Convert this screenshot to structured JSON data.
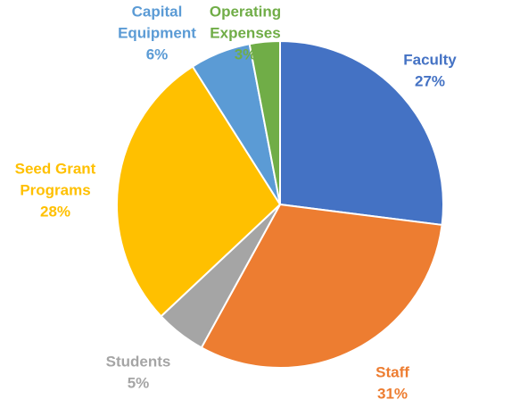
{
  "chart_data": {
    "type": "pie",
    "slices": [
      {
        "name": "Faculty",
        "value": 27,
        "value_label": "27%",
        "color": "#4472C4",
        "label_lines": [
          "Faculty"
        ]
      },
      {
        "name": "Staff",
        "value": 31,
        "value_label": "31%",
        "color": "#ED7D31",
        "label_lines": [
          "Staff"
        ]
      },
      {
        "name": "Students",
        "value": 5,
        "value_label": "5%",
        "color": "#A5A5A5",
        "label_lines": [
          "Students"
        ]
      },
      {
        "name": "Seed Grant Programs",
        "value": 28,
        "value_label": "28%",
        "color": "#FFC000",
        "label_lines": [
          "Seed Grant",
          "Programs"
        ]
      },
      {
        "name": "Capital Equipment",
        "value": 6,
        "value_label": "6%",
        "color": "#5B9BD5",
        "label_lines": [
          "Capital",
          "Equipment"
        ]
      },
      {
        "name": "Operating Expenses",
        "value": 3,
        "value_label": "3%",
        "color": "#70AD47",
        "label_lines": [
          "Operating",
          "Expenses"
        ]
      }
    ],
    "start": "12 o'clock",
    "direction": "clockwise",
    "legend": "none",
    "data_labels": "outside"
  }
}
